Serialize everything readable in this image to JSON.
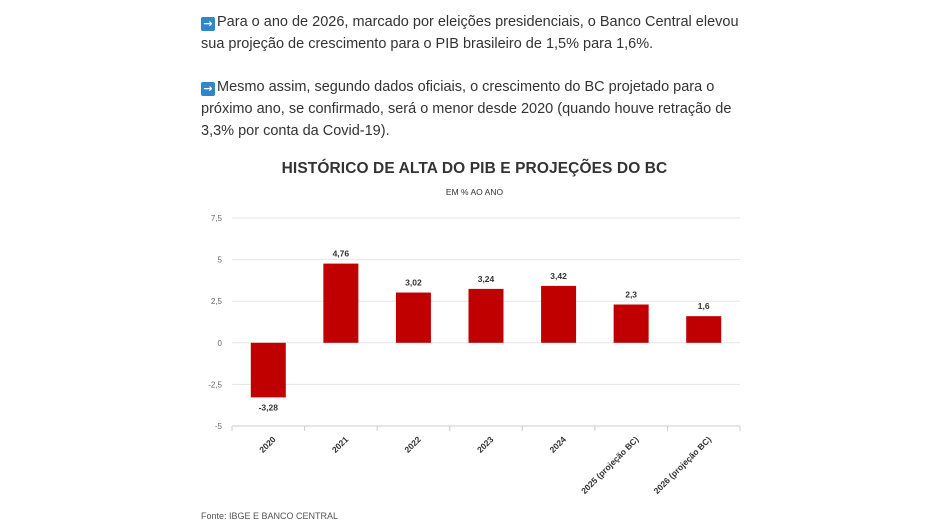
{
  "article": {
    "paragraph_1": "Para o ano de 2026, marcado por eleições presidenciais, o Banco Central elevou sua projeção de crescimento para o PIB brasileiro de 1,5% para 1,6%.",
    "paragraph_2": "Mesmo assim, segundo dados oficiais, o crescimento do BC projetado para o próximo ano, se confirmado, será o menor desde 2020 (quando houve retração de 3,3% por conta da Covid-19).",
    "bullet_icon": "right-arrow-icon"
  },
  "chart_data": {
    "type": "bar",
    "title": "HISTÓRICO DE ALTA DO PIB E PROJEÇÕES DO BC",
    "subtitle": "EM % AO ANO",
    "categories": [
      "2020",
      "2021",
      "2022",
      "2023",
      "2024",
      "2025 (projeção BC)",
      "2026 (projeção BC)"
    ],
    "values": [
      -3.28,
      4.76,
      3.02,
      3.24,
      3.42,
      2.3,
      1.6
    ],
    "value_labels": [
      "-3,28",
      "4,76",
      "3,02",
      "3,24",
      "3,42",
      "2,3",
      "1,6"
    ],
    "yticks": [
      7.5,
      5,
      2.5,
      0,
      -2.5,
      -5
    ],
    "ytick_labels": [
      "7,5",
      "5",
      "2,5",
      "0",
      "-2,5",
      "-5"
    ],
    "ylim": [
      -5,
      7.5
    ],
    "xlabel": "",
    "ylabel": "",
    "grid": true,
    "bar_color": "#c00000",
    "source": "Fonte: IBGE E BANCO CENTRAL"
  }
}
